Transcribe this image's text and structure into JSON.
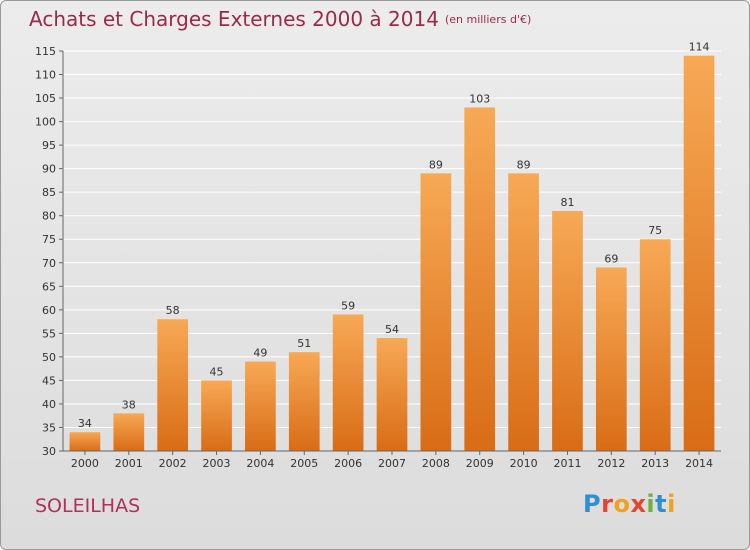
{
  "header": {
    "title": "Achats et Charges Externes 2000 à 2014",
    "unit": "(en milliers d'€)"
  },
  "footer": {
    "place": "SOLEILHAS",
    "logo_text": "Proxiti",
    "logo_letters": [
      {
        "ch": "P",
        "color": "#2f8fd0"
      },
      {
        "ch": "r",
        "color": "#e3462f"
      },
      {
        "ch": "o",
        "color": "#f0a21c"
      },
      {
        "ch": "x",
        "color": "#e3462f"
      },
      {
        "ch": "i",
        "color": "#6db33f"
      },
      {
        "ch": "t",
        "color": "#2f8fd0"
      },
      {
        "ch": "i",
        "color": "#f0a21c"
      }
    ]
  },
  "colors": {
    "bar_light": "#f7a955",
    "bar_dark": "#d96c16",
    "grid": "#ffffff",
    "axis": "#666666"
  },
  "chart_data": {
    "type": "bar",
    "title": "Achats et Charges Externes 2000 à 2014",
    "subtitle": "(en milliers d'€)",
    "xlabel": "",
    "ylabel": "",
    "categories": [
      "2000",
      "2001",
      "2002",
      "2003",
      "2004",
      "2005",
      "2006",
      "2007",
      "2008",
      "2009",
      "2010",
      "2011",
      "2012",
      "2013",
      "2014"
    ],
    "values": [
      34,
      38,
      58,
      45,
      49,
      51,
      59,
      54,
      89,
      103,
      89,
      81,
      69,
      75,
      114
    ],
    "ylim": [
      30,
      115
    ],
    "yticks": [
      30,
      35,
      40,
      45,
      50,
      55,
      60,
      65,
      70,
      75,
      80,
      85,
      90,
      95,
      100,
      105,
      110,
      115
    ],
    "grid": true,
    "legend": "none"
  }
}
